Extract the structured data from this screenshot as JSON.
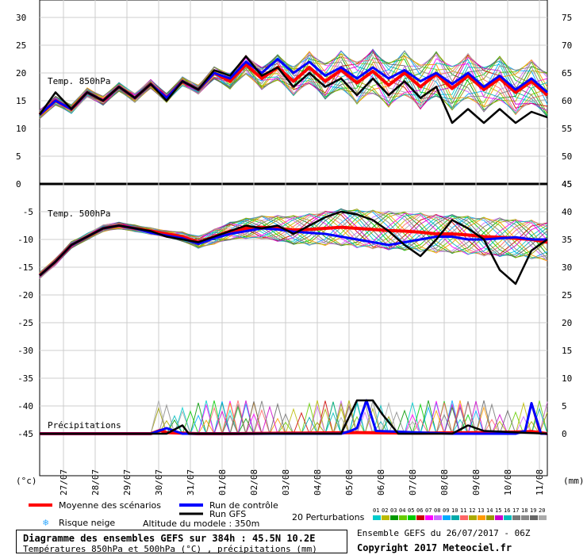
{
  "chart_data": {
    "type": "line",
    "x_date_labels": [
      "27/07",
      "28/07",
      "29/07",
      "30/07",
      "31/07",
      "01/08",
      "02/08",
      "03/08",
      "04/08",
      "05/08",
      "06/08",
      "07/08",
      "08/08",
      "09/08",
      "10/08",
      "11/08"
    ],
    "unit_left": "(°c)",
    "unit_right": "(mm)",
    "panels": [
      {
        "id": "t850",
        "label": "Temp. 850hPa",
        "left_ticks": [
          30,
          25,
          20,
          15,
          10,
          5,
          0
        ],
        "right_ticks": [
          75,
          70,
          65,
          60,
          55,
          50,
          45
        ],
        "ylim": [
          0,
          30
        ],
        "series": [
          {
            "name": "Moyenne des scénarios",
            "color": "#ff0000",
            "x": [
              0,
              0.5,
              1,
              1.5,
              2,
              2.5,
              3,
              3.5,
              4,
              4.5,
              5,
              5.5,
              6,
              6.5,
              7,
              7.5,
              8,
              8.5,
              9,
              9.5,
              10,
              10.5,
              11,
              11.5,
              12,
              12.5,
              13,
              13.5,
              14,
              14.5,
              15,
              15.5,
              16
            ],
            "values": [
              12.5,
              15,
              13.5,
              16.5,
              15,
              17.5,
              15.5,
              18,
              15.5,
              18.5,
              17,
              20,
              18.5,
              21.5,
              19,
              21,
              18.5,
              21,
              18.5,
              20.5,
              18.2,
              20.3,
              17.8,
              20,
              17.5,
              19.8,
              17.2,
              19.5,
              17,
              19,
              16.5,
              18.5,
              16
            ]
          },
          {
            "name": "Run de contrôle",
            "color": "#0000ff",
            "x": [
              0,
              0.5,
              1,
              1.5,
              2,
              2.5,
              3,
              3.5,
              4,
              4.5,
              5,
              5.5,
              6,
              6.5,
              7,
              7.5,
              8,
              8.5,
              9,
              9.5,
              10,
              10.5,
              11,
              11.5,
              12,
              12.5,
              13,
              13.5,
              14,
              14.5,
              15,
              15.5,
              16
            ],
            "values": [
              12.5,
              15,
              13.5,
              16.5,
              15,
              17.5,
              15.5,
              18,
              15.5,
              18.5,
              17,
              20,
              19,
              22,
              20,
              22.5,
              20,
              22,
              19.5,
              21,
              19,
              21,
              19,
              20.5,
              18.5,
              20,
              18,
              20,
              17.5,
              19.5,
              17,
              19,
              16.5
            ]
          },
          {
            "name": "Run GFS",
            "color": "#000000",
            "x": [
              0,
              0.5,
              1,
              1.5,
              2,
              2.5,
              3,
              3.5,
              4,
              4.5,
              5,
              5.5,
              6,
              6.5,
              7,
              7.5,
              8,
              8.5,
              9,
              9.5,
              10,
              10.5,
              11,
              11.5,
              12,
              12.5,
              13,
              13.5,
              14,
              14.5,
              15,
              15.5,
              16
            ],
            "values": [
              12.5,
              16.5,
              13.5,
              16.5,
              15,
              17.5,
              15.5,
              18,
              15,
              18.5,
              17,
              20.5,
              19.5,
              23,
              19.5,
              21,
              17.5,
              20,
              17.5,
              19,
              16,
              19,
              16,
              18.5,
              15.5,
              17.5,
              11,
              13.5,
              11,
              13.5,
              11,
              13,
              12
            ]
          }
        ]
      },
      {
        "id": "t500",
        "label": "Temp. 500hPa",
        "left_ticks": [
          -5,
          -10,
          -15,
          -20,
          -25,
          -30,
          -35,
          -40,
          -45
        ],
        "right_ticks": [
          45,
          40,
          35,
          30,
          25,
          20,
          15,
          10,
          5,
          0
        ],
        "ylim": [
          -45,
          -5
        ],
        "series": [
          {
            "name": "Moyenne des scénarios",
            "color": "#ff0000",
            "x": [
              0,
              0.5,
              1,
              1.5,
              2,
              2.5,
              3,
              3.5,
              4,
              4.5,
              5,
              5.5,
              6,
              6.5,
              7,
              7.5,
              8,
              8.5,
              9,
              9.5,
              10,
              10.5,
              11,
              11.5,
              12,
              12.5,
              13,
              13.5,
              14,
              14.5,
              15,
              15.5,
              16
            ],
            "values": [
              -16.5,
              -14,
              -11,
              -9.5,
              -8,
              -7.5,
              -8,
              -8.5,
              -9,
              -9.5,
              -10.5,
              -9.5,
              -8.5,
              -8,
              -7.8,
              -8,
              -8.3,
              -8.2,
              -8,
              -7.8,
              -8,
              -8.2,
              -8.4,
              -8.5,
              -8.7,
              -9,
              -9,
              -9.2,
              -9.5,
              -9.6,
              -9.8,
              -10,
              -10.5
            ]
          },
          {
            "name": "Run de contrôle",
            "color": "#0000ff",
            "x": [
              0,
              0.5,
              1,
              1.5,
              2,
              2.5,
              3,
              3.5,
              4,
              4.5,
              5,
              5.5,
              6,
              6.5,
              7,
              7.5,
              8,
              8.5,
              9,
              9.5,
              10,
              10.5,
              11,
              11.5,
              12,
              12.5,
              13,
              13.5,
              14,
              14.5,
              15,
              15.5,
              16
            ],
            "values": [
              -16.5,
              -14,
              -11,
              -9.5,
              -8,
              -7.5,
              -8,
              -8.8,
              -9.3,
              -9.8,
              -10.8,
              -9.8,
              -9,
              -8.5,
              -8,
              -8.2,
              -8.6,
              -8.8,
              -9,
              -9.5,
              -10,
              -10.5,
              -11,
              -10.5,
              -10,
              -9.5,
              -9.5,
              -10,
              -10,
              -9.8,
              -9.6,
              -10,
              -10
            ]
          },
          {
            "name": "Run GFS",
            "color": "#000000",
            "x": [
              0,
              0.5,
              1,
              1.5,
              2,
              2.5,
              3,
              3.5,
              4,
              4.5,
              5,
              5.5,
              6,
              6.5,
              7,
              7.5,
              8,
              8.5,
              9,
              9.5,
              10,
              10.5,
              11,
              11.5,
              12,
              12.5,
              13,
              13.5,
              14,
              14.5,
              15,
              15.5,
              16
            ],
            "values": [
              -16.5,
              -14,
              -11,
              -9.5,
              -8,
              -7.5,
              -8,
              -8.5,
              -9.5,
              -10,
              -10.5,
              -9.5,
              -8.5,
              -7.5,
              -8,
              -7.5,
              -9,
              -7.5,
              -6,
              -5,
              -5.5,
              -6.5,
              -8.5,
              -11,
              -13,
              -10,
              -6.5,
              -8,
              -10,
              -15.5,
              -18,
              -12,
              -10
            ]
          }
        ]
      },
      {
        "id": "precip",
        "label": "Précipitations",
        "series": [
          {
            "name": "Moyenne des scénarios",
            "color": "#ff0000",
            "x": [
              0,
              2,
              3.5,
              3.8,
              4,
              5,
              6,
              8,
              10,
              12,
              14,
              15,
              15.5,
              16
            ],
            "values": [
              0,
              0,
              0,
              0.6,
              0.2,
              0,
              0,
              0.1,
              0.2,
              0.1,
              0.2,
              0.3,
              0.4,
              0
            ]
          },
          {
            "name": "Run de contrôle",
            "color": "#0000ff",
            "x": [
              0,
              3.5,
              4,
              4.5,
              9.5,
              9.8,
              10,
              10.3,
              10.6,
              13,
              15,
              15.3,
              15.5,
              15.8,
              16
            ],
            "values": [
              0,
              0,
              1,
              0,
              0,
              0.5,
              1,
              6,
              0.5,
              0,
              0,
              0.5,
              5.5,
              0,
              0
            ]
          },
          {
            "name": "Run GFS",
            "color": "#000000",
            "x": [
              0,
              4,
              4.5,
              4.7,
              5,
              9.5,
              10,
              10.5,
              10.8,
              11.3,
              12,
              13,
              13.5,
              14,
              16
            ],
            "values": [
              0,
              0,
              1.5,
              0,
              0,
              0,
              6,
              6,
              3.5,
              0,
              0,
              0,
              1.5,
              0.5,
              0
            ]
          }
        ]
      }
    ]
  },
  "legend": {
    "mean": "Moyenne des scénarios",
    "control": "Run de contrôle",
    "gfs": "Run GFS",
    "perturbations": "20 Perturbations",
    "snow_risk": "Risque neige",
    "altitude": "Altitude du modele : 350m",
    "perturbation_ids": [
      "01",
      "02",
      "03",
      "04",
      "05",
      "06",
      "07",
      "08",
      "09",
      "10",
      "11",
      "12",
      "13",
      "14",
      "15",
      "16",
      "17",
      "18",
      "19",
      "20"
    ],
    "perturbation_colors": [
      "#00cccc",
      "#bbbb00",
      "#009900",
      "#66cc00",
      "#00cc00",
      "#cc0000",
      "#ff00ff",
      "#cc66ff",
      "#00aaff",
      "#00aaaa",
      "#ff6666",
      "#aaaa00",
      "#ff9900",
      "#999900",
      "#cc00cc",
      "#00bbbb",
      "#777777",
      "#888888",
      "#666666",
      "#aaaaaa"
    ]
  },
  "footer": {
    "title": "Diagramme des ensembles GEFS sur 384h : 45.5N 10.2E",
    "subtitle": "Températures 850hPa et 500hPa (°C) , précipitations (mm)",
    "run": "Ensemble GEFS du 26/07/2017 - 06Z",
    "copyright": "Copyright 2017 Meteociel.fr"
  }
}
